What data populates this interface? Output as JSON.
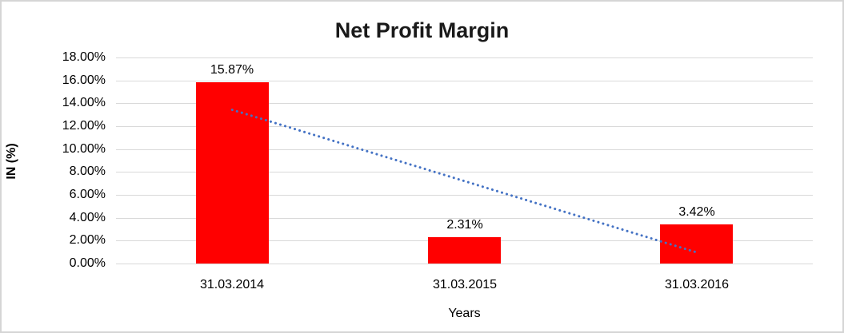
{
  "chart_data": {
    "type": "bar",
    "title": "Net Profit Margin",
    "xlabel": "Years",
    "ylabel": "IN (%)",
    "categories": [
      "31.03.2014",
      "31.03.2015",
      "31.03.2016"
    ],
    "values": [
      15.87,
      2.31,
      3.42
    ],
    "data_labels": [
      "15.87%",
      "2.31%",
      "3.42%"
    ],
    "ylim": [
      0,
      18
    ],
    "yticks": [
      0,
      2,
      4,
      6,
      8,
      10,
      12,
      14,
      16,
      18
    ],
    "ytick_labels": [
      "0.00%",
      "2.00%",
      "4.00%",
      "6.00%",
      "8.00%",
      "10.00%",
      "12.00%",
      "14.00%",
      "16.00%",
      "18.00%"
    ],
    "grid": true,
    "legend": false,
    "bar_color": "#ff0000",
    "gridline_color": "#d9d9d9",
    "trendline": {
      "type": "linear",
      "style": "dotted",
      "color": "#4472c4",
      "start_value": 13.43,
      "end_value": 0.98
    }
  }
}
